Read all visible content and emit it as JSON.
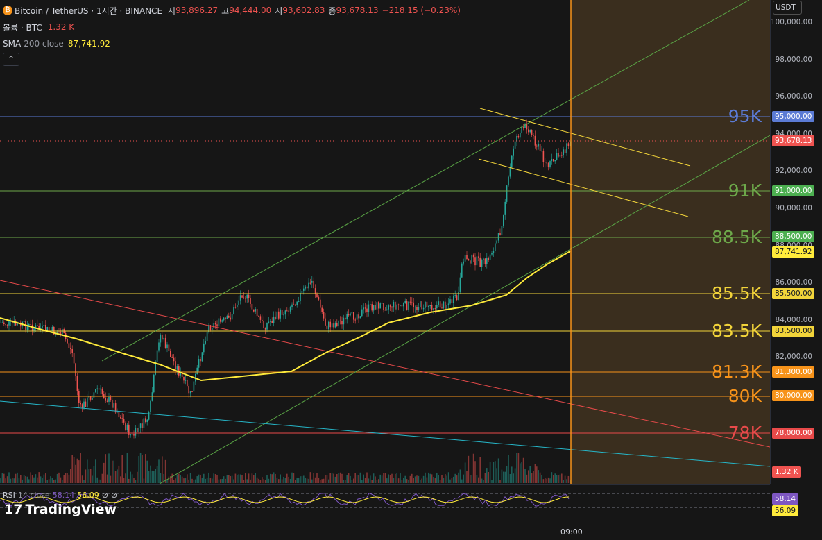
{
  "header": {
    "symbol": "Bitcoin / TetherUS · 1시간 · BINANCE",
    "open_label": "시",
    "open_value": "93,896.27",
    "high_label": "고",
    "high_value": "94,444.00",
    "low_label": "저",
    "low_value": "93,602.83",
    "close_label": "종",
    "close_value": "93,678.13",
    "change": "−218.15 (−0.23%)"
  },
  "volume": {
    "label": "볼륨 · BTC",
    "value": "1.32 K"
  },
  "sma": {
    "label": "SMA",
    "params": "200 close",
    "value": "87,741.92"
  },
  "currency": "USDT",
  "price_ticks": [
    "100,000.00",
    "98,000.00",
    "96,000.00",
    "94,000.00",
    "92,000.00",
    "90,000.00",
    "88,000.00",
    "86,000.00",
    "84,000.00",
    "82,000.00",
    "80,000.00"
  ],
  "axis_tags": {
    "level_95": "95,000.00",
    "current": "93,678.13",
    "level_91": "91,000.00",
    "level_88_5": "88,500.00",
    "sma": "87,741.92",
    "level_85_5": "85,500.00",
    "level_83_5": "83,500.00",
    "level_81_3": "81,300.00",
    "level_80": "80,000.00",
    "level_78": "78,000.00",
    "volume": "1.32 K"
  },
  "level_labels": {
    "l95": "95K",
    "l91": "91K",
    "l88_5": "88.5K",
    "l85_5": "85.5K",
    "l83_5": "83.5K",
    "l81_3": "81.3K",
    "l80": "80K",
    "l78": "78K"
  },
  "rsi": {
    "label": "RSI",
    "params": "14 close",
    "value1": "58.14",
    "value2": "56.09",
    "tag1": "58.14",
    "tag2": "56.09"
  },
  "time_label": "09:00",
  "brand": "TradingView",
  "colors": {
    "up": "#26a69a",
    "down": "#ef5350",
    "sma": "#ffeb3b",
    "blue": "#5b7bd5",
    "green": "#6da84a",
    "yellow": "#f2d43a",
    "orange": "#f7931a",
    "red": "#e84a4a"
  },
  "icons": {
    "collapse": "chevron-up-icon",
    "bitcoin": "bitcoin-icon",
    "eye_off_1": "eye-off-icon",
    "eye_off_2": "eye-off-icon"
  }
}
